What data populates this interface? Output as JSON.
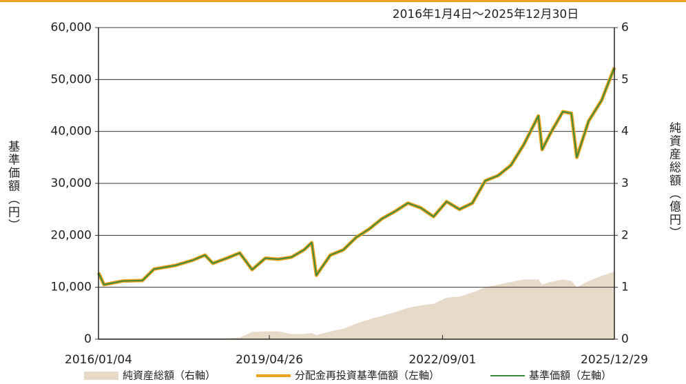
{
  "chart_data": {
    "type": "line",
    "title": "2016年1月4日～2025年12月30日",
    "y_label": "基準価額（円）",
    "y2_label": "純資産総額（億円）",
    "x": [
      "2016/01/04",
      "2016/02/12",
      "2016/06/24",
      "2016/11/09",
      "2017/01/31",
      "2017/06/30",
      "2017/10/31",
      "2018/01/26",
      "2018/03/23",
      "2018/06/29",
      "2018/09/28",
      "2018/12/25",
      "2019/03/29",
      "2019/06/28",
      "2019/09/30",
      "2019/12/27",
      "2020/02/20",
      "2020/03/23",
      "2020/06/30",
      "2020/09/30",
      "2020/12/30",
      "2021/03/31",
      "2021/06/30",
      "2021/09/30",
      "2021/12/30",
      "2022/03/31",
      "2022/06/30",
      "2022/09/30",
      "2022/12/30",
      "2023/03/31",
      "2023/06/30",
      "2023/09/29",
      "2023/12/29",
      "2024/03/29",
      "2024/07/10",
      "2024/08/05",
      "2024/09/30",
      "2024/12/30",
      "2025/02/28",
      "2025/04/07",
      "2025/06/30",
      "2025/09/30",
      "2025/12/29"
    ],
    "xlim": [
      "2016/01/04",
      "2025/12/29"
    ],
    "xticks": [
      "2016/01/04",
      "2019/04/26",
      "2022/09/01",
      "2025/12/29"
    ],
    "ylim": [
      0,
      60000
    ],
    "yticks": [
      0,
      {
        "value": 10000,
        "label": "10,000"
      },
      {
        "value": 20000,
        "label": "20,000"
      },
      {
        "value": 30000,
        "label": "30,000"
      },
      {
        "value": 40000,
        "label": "40,000"
      },
      {
        "value": 50000,
        "label": "50,000"
      },
      {
        "value": 60000,
        "label": "60,000"
      }
    ],
    "y2lim": [
      0,
      6
    ],
    "y2ticks": [
      0,
      1,
      2,
      3,
      4,
      5,
      6
    ],
    "grid": true,
    "series": [
      {
        "name": "純資産総額（右軸）",
        "type": "area",
        "axis": "y2",
        "color": "#e8dac8",
        "values": [
          0.02,
          0.02,
          0.02,
          0.02,
          0.02,
          0.02,
          0.02,
          0.02,
          0.02,
          0.02,
          0.03,
          0.14,
          0.15,
          0.15,
          0.1,
          0.1,
          0.12,
          0.08,
          0.15,
          0.2,
          0.3,
          0.38,
          0.45,
          0.52,
          0.6,
          0.65,
          0.68,
          0.8,
          0.82,
          0.9,
          1.0,
          1.05,
          1.1,
          1.15,
          1.15,
          1.05,
          1.1,
          1.15,
          1.12,
          1.0,
          1.12,
          1.22,
          1.3
        ]
      },
      {
        "name": "分配金再投資基準価額（左軸）",
        "type": "line",
        "color": "#f0a21c",
        "values": [
          12800,
          10500,
          11200,
          11300,
          13500,
          14200,
          15200,
          16200,
          14600,
          15600,
          16600,
          13400,
          15600,
          15400,
          15800,
          17200,
          18600,
          12300,
          16200,
          17200,
          19600,
          21200,
          23200,
          24600,
          26200,
          25300,
          23600,
          26500,
          25000,
          26200,
          30500,
          31500,
          33500,
          37500,
          43000,
          36500,
          39500,
          43800,
          43500,
          35000,
          42000,
          46000,
          52300
        ]
      },
      {
        "name": "基準価額（左軸）",
        "type": "line",
        "color": "#3b8a3b",
        "values": [
          12800,
          10500,
          11200,
          11300,
          13500,
          14200,
          15200,
          16200,
          14600,
          15600,
          16600,
          13400,
          15600,
          15400,
          15800,
          17200,
          18600,
          12300,
          16200,
          17200,
          19600,
          21200,
          23200,
          24600,
          26200,
          25300,
          23600,
          26500,
          25000,
          26200,
          30500,
          31500,
          33500,
          37500,
          43000,
          36500,
          39500,
          43800,
          43500,
          35000,
          42000,
          46000,
          52300
        ]
      }
    ]
  }
}
